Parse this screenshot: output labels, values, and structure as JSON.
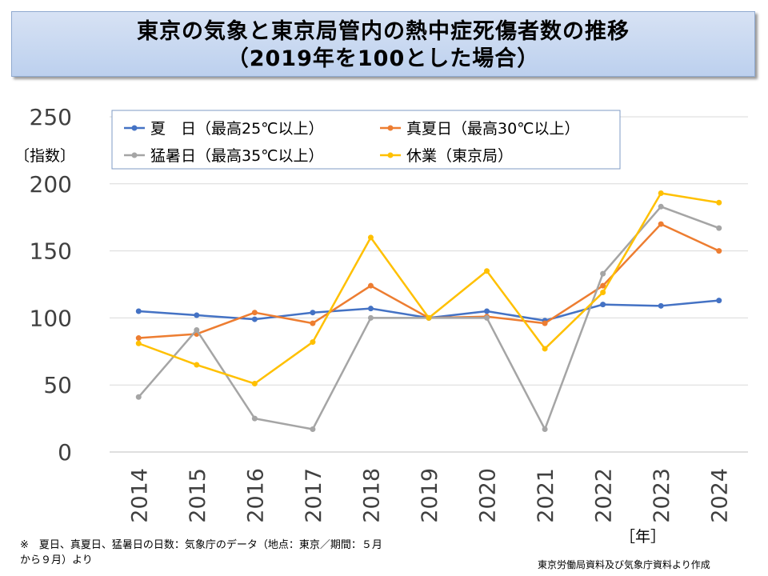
{
  "title": {
    "line1": "東京の気象と東京局管内の熱中症死傷者数の推移",
    "line2": "（2019年を100とした場合）"
  },
  "y_unit_label": "〔指数〕",
  "x_unit_label": "［年］",
  "footnote": "※　夏日、真夏日、猛暑日の日数：気象庁のデータ（地点：東京／期間：５月から９月）より",
  "source": "東京労働局資料及び気象庁資料より作成",
  "chart_data": {
    "type": "line",
    "title": "東京の気象と東京局管内の熱中症死傷者数の推移（2019年を100とした場合）",
    "xlabel": "［年］",
    "ylabel": "〔指数〕",
    "categories": [
      "2014",
      "2015",
      "2016",
      "2017",
      "2018",
      "2019",
      "2020",
      "2021",
      "2022",
      "2023",
      "2024"
    ],
    "ylim": [
      0,
      250
    ],
    "yticks": [
      0,
      50,
      100,
      150,
      200,
      250
    ],
    "grid": true,
    "legend_position": "top",
    "series": [
      {
        "name": "夏　日（最高25℃以上）",
        "color": "#4472c4",
        "values": [
          105,
          102,
          99,
          104,
          107,
          100,
          105,
          98,
          110,
          109,
          113
        ]
      },
      {
        "name": "真夏日（最高30℃以上）",
        "color": "#ed7d31",
        "values": [
          85,
          88,
          104,
          96,
          124,
          100,
          101,
          96,
          124,
          170,
          150
        ]
      },
      {
        "name": "猛暑日（最高35℃以上）",
        "color": "#a5a5a5",
        "values": [
          41,
          91,
          25,
          17,
          100,
          100,
          100,
          17,
          133,
          183,
          167
        ]
      },
      {
        "name": "休業（東京局）",
        "color": "#ffc000",
        "values": [
          81,
          65,
          51,
          82,
          160,
          100,
          135,
          77,
          119,
          193,
          186
        ]
      }
    ]
  }
}
